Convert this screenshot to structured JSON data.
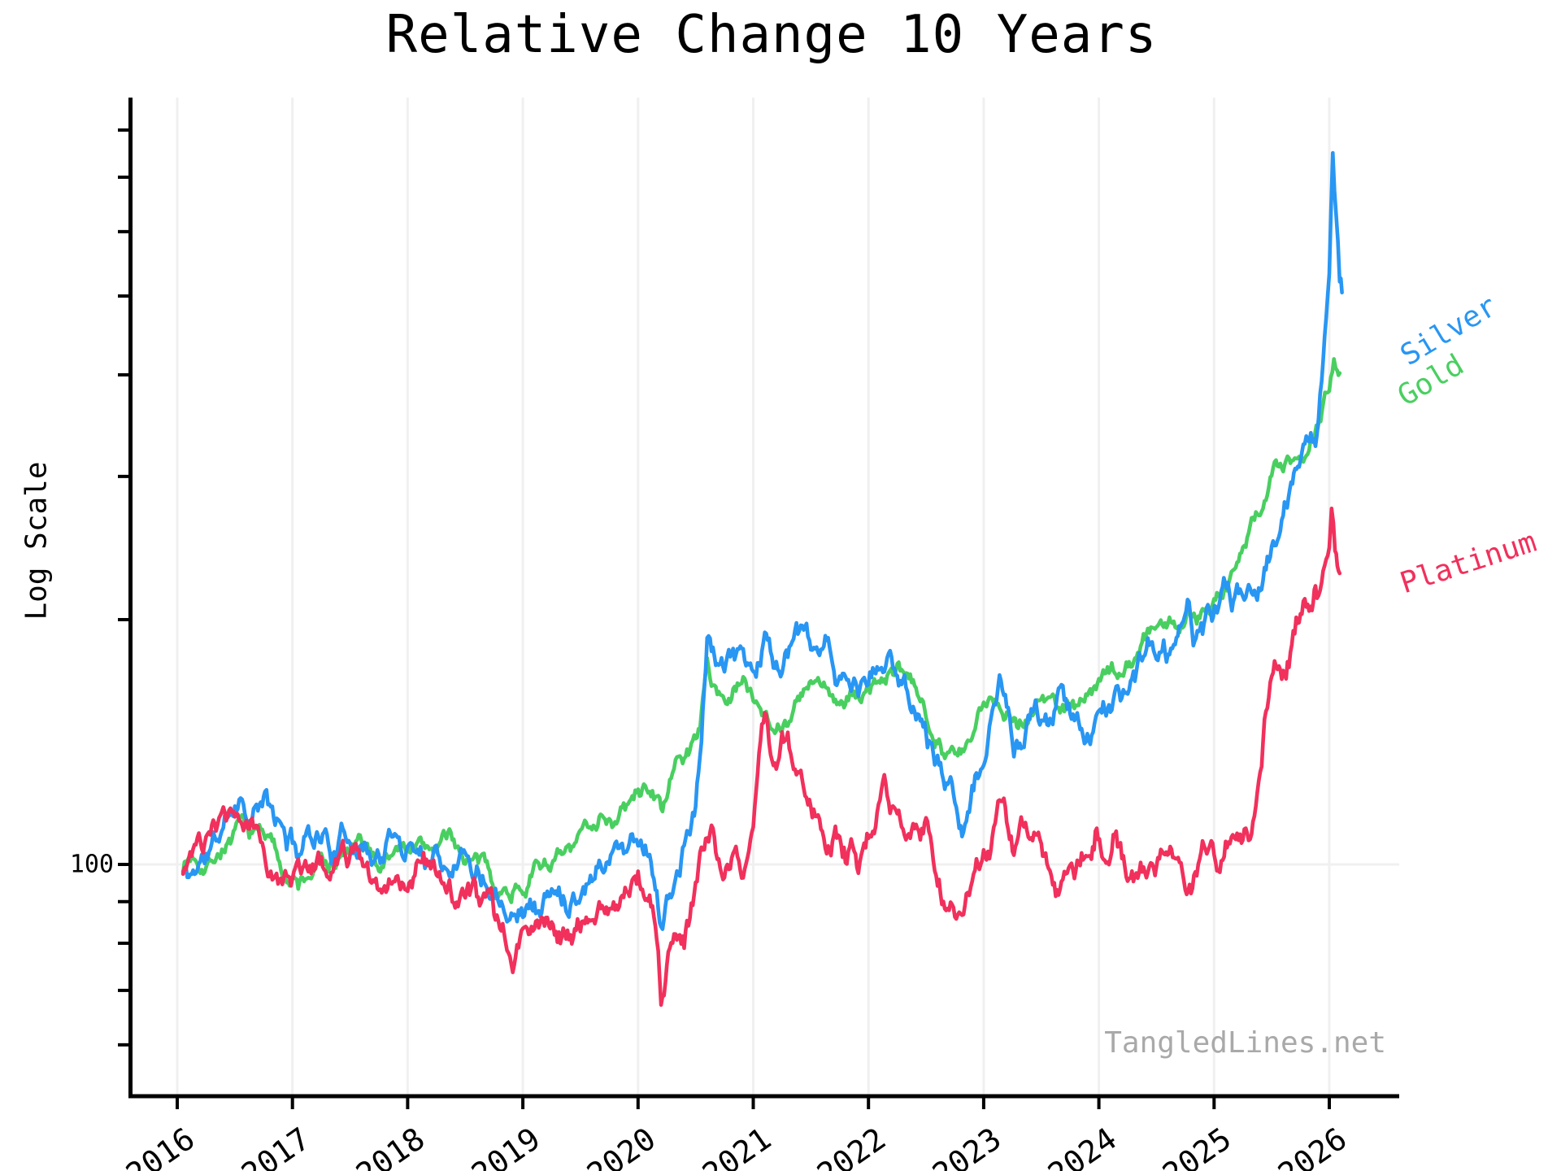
{
  "title": "Relative Change 10 Years",
  "watermark": "TangledLines.net",
  "y_axis": {
    "label": "Log Scale",
    "tick_label": "100"
  },
  "legend": [
    {
      "label": "Silver",
      "color": "#2896F3"
    },
    {
      "label": "Gold",
      "color": "#49CF60"
    },
    {
      "label": "Platinum",
      "color": "#F1305C"
    }
  ],
  "chart_data": {
    "type": "line",
    "title": "Relative Change 10 Years",
    "xlabel": "",
    "ylabel": "Log Scale",
    "yscale": "log",
    "ylim": [
      58,
      900
    ],
    "xlim": [
      2015.58,
      2026.6
    ],
    "x_ticks": [
      2016,
      2017,
      2018,
      2019,
      2020,
      2021,
      2022,
      2023,
      2024,
      2025,
      2026
    ],
    "y_tick_labeled": 100,
    "y_ticks_minor": [
      60,
      70,
      80,
      90,
      200,
      300,
      400,
      500,
      600,
      700,
      800
    ],
    "grid": {
      "vertical": "every year",
      "horizontal": "only at 100"
    },
    "legend_position": "right-of-line-ends",
    "series": [
      {
        "name": "Silver",
        "color": "#2896F3",
        "x": [
          2016.05,
          2016.1,
          2016.2,
          2016.3,
          2016.4,
          2016.5,
          2016.55,
          2016.65,
          2016.75,
          2016.85,
          2016.95,
          2017.05,
          2017.15,
          2017.25,
          2017.35,
          2017.45,
          2017.55,
          2017.65,
          2017.75,
          2017.85,
          2017.95,
          2018.05,
          2018.15,
          2018.25,
          2018.35,
          2018.45,
          2018.55,
          2018.65,
          2018.75,
          2018.85,
          2018.95,
          2019.05,
          2019.15,
          2019.25,
          2019.35,
          2019.45,
          2019.55,
          2019.65,
          2019.75,
          2019.85,
          2019.95,
          2020.05,
          2020.1,
          2020.15,
          2020.2,
          2020.25,
          2020.3,
          2020.35,
          2020.4,
          2020.45,
          2020.5,
          2020.55,
          2020.6,
          2020.65,
          2020.7,
          2020.75,
          2020.8,
          2020.85,
          2020.9,
          2020.95,
          2021.0,
          2021.1,
          2021.15,
          2021.2,
          2021.3,
          2021.4,
          2021.5,
          2021.55,
          2021.65,
          2021.75,
          2021.85,
          2021.95,
          2022.05,
          2022.15,
          2022.25,
          2022.35,
          2022.45,
          2022.55,
          2022.65,
          2022.75,
          2022.85,
          2022.95,
          2023.05,
          2023.15,
          2023.25,
          2023.35,
          2023.45,
          2023.55,
          2023.65,
          2023.75,
          2023.85,
          2023.95,
          2024.05,
          2024.15,
          2024.25,
          2024.35,
          2024.45,
          2024.55,
          2024.65,
          2024.72,
          2024.77,
          2024.82,
          2024.9,
          2024.97,
          2025.05,
          2025.12,
          2025.2,
          2025.3,
          2025.4,
          2025.5,
          2025.6,
          2025.68,
          2025.75,
          2025.8,
          2025.84,
          2025.88,
          2025.92,
          2025.96,
          2026.0,
          2026.03,
          2026.06,
          2026.09,
          2026.11
        ],
        "values": [
          98,
          96,
          101,
          104,
          110,
          121,
          123,
          117,
          120,
          112,
          107,
          104,
          110,
          112,
          105,
          107,
          110,
          106,
          104,
          107,
          105,
          108,
          104,
          106,
          104,
          107,
          103,
          100,
          97,
          94,
          92,
          91,
          90,
          92,
          91,
          94,
          98,
          102,
          105,
          107,
          108,
          109,
          106,
          98,
          85,
          89,
          94,
          99,
          104,
          108,
          116,
          140,
          193,
          180,
          176,
          170,
          175,
          172,
          180,
          176,
          174,
          191,
          182,
          176,
          183,
          188,
          181,
          172,
          176,
          168,
          161,
          164,
          170,
          177,
          171,
          164,
          152,
          143,
          128,
          120,
          117,
          128,
          145,
          164,
          140,
          132,
          152,
          148,
          157,
          149,
          146,
          149,
          152,
          158,
          165,
          172,
          180,
          184,
          176,
          196,
          223,
          196,
          189,
          204,
          210,
          216,
          209,
          222,
          232,
          244,
          262,
          292,
          318,
          342,
          352,
          330,
          398,
          455,
          560,
          776,
          640,
          520,
          505
        ]
      },
      {
        "name": "Gold",
        "color": "#49CF60",
        "x": [
          2016.05,
          2016.15,
          2016.25,
          2016.35,
          2016.45,
          2016.55,
          2016.65,
          2016.75,
          2016.85,
          2016.95,
          2017.05,
          2017.15,
          2017.25,
          2017.35,
          2017.45,
          2017.55,
          2017.65,
          2017.75,
          2017.85,
          2017.95,
          2018.05,
          2018.15,
          2018.25,
          2018.35,
          2018.45,
          2018.55,
          2018.65,
          2018.75,
          2018.85,
          2018.95,
          2019.05,
          2019.15,
          2019.25,
          2019.35,
          2019.45,
          2019.55,
          2019.65,
          2019.7,
          2019.8,
          2019.9,
          2020.0,
          2020.1,
          2020.15,
          2020.2,
          2020.3,
          2020.4,
          2020.5,
          2020.55,
          2020.6,
          2020.65,
          2020.7,
          2020.8,
          2020.9,
          2021.0,
          2021.1,
          2021.2,
          2021.3,
          2021.4,
          2021.5,
          2021.6,
          2021.7,
          2021.8,
          2021.9,
          2022.0,
          2022.1,
          2022.2,
          2022.3,
          2022.4,
          2022.5,
          2022.6,
          2022.7,
          2022.8,
          2022.9,
          2023.0,
          2023.1,
          2023.2,
          2023.3,
          2023.4,
          2023.5,
          2023.6,
          2023.7,
          2023.8,
          2023.9,
          2024.0,
          2024.1,
          2024.2,
          2024.3,
          2024.4,
          2024.5,
          2024.6,
          2024.7,
          2024.8,
          2024.9,
          2025.0,
          2025.1,
          2025.2,
          2025.3,
          2025.4,
          2025.45,
          2025.5,
          2025.55,
          2025.6,
          2025.65,
          2025.7,
          2025.75,
          2025.8,
          2025.85,
          2025.9,
          2025.95,
          2026.0,
          2026.04,
          2026.07,
          2026.09
        ],
        "values": [
          100,
          103,
          102,
          105,
          108,
          110,
          107,
          110,
          104,
          98,
          94,
          97,
          100,
          99,
          102,
          104,
          102,
          100,
          103,
          104,
          107,
          104,
          106,
          107,
          104,
          101,
          98,
          95,
          93,
          95,
          97,
          100,
          102,
          101,
          103,
          109,
          116,
          118,
          114,
          117,
          121,
          126,
          122,
          116,
          129,
          135,
          143,
          155,
          174,
          167,
          164,
          160,
          168,
          163,
          157,
          151,
          154,
          159,
          165,
          162,
          160,
          157,
          159,
          163,
          169,
          172,
          167,
          161,
          154,
          147,
          139,
          135,
          141,
          153,
          162,
          158,
          151,
          156,
          162,
          158,
          156,
          160,
          163,
          167,
          170,
          174,
          182,
          191,
          196,
          199,
          197,
          204,
          208,
          215,
          223,
          234,
          255,
          272,
          288,
          302,
          307,
          303,
          308,
          306,
          304,
          315,
          333,
          345,
          362,
          388,
          428,
          412,
          402
        ]
      },
      {
        "name": "Platinum",
        "color": "#F1305C",
        "x": [
          2016.05,
          2016.15,
          2016.25,
          2016.35,
          2016.45,
          2016.5,
          2016.6,
          2016.7,
          2016.8,
          2016.9,
          2017.0,
          2017.1,
          2017.2,
          2017.3,
          2017.4,
          2017.5,
          2017.6,
          2017.7,
          2017.8,
          2017.9,
          2018.0,
          2018.1,
          2018.2,
          2018.3,
          2018.4,
          2018.5,
          2018.6,
          2018.7,
          2018.8,
          2018.9,
          2019.0,
          2019.1,
          2019.2,
          2019.3,
          2019.4,
          2019.5,
          2019.6,
          2019.7,
          2019.8,
          2019.9,
          2020.0,
          2020.1,
          2020.15,
          2020.2,
          2020.25,
          2020.3,
          2020.35,
          2020.4,
          2020.5,
          2020.6,
          2020.65,
          2020.7,
          2020.75,
          2020.8,
          2020.85,
          2020.9,
          2020.95,
          2021.0,
          2021.05,
          2021.1,
          2021.15,
          2021.2,
          2021.25,
          2021.3,
          2021.35,
          2021.4,
          2021.45,
          2021.5,
          2021.55,
          2021.6,
          2021.65,
          2021.7,
          2021.75,
          2021.8,
          2021.85,
          2021.9,
          2022.0,
          2022.05,
          2022.1,
          2022.15,
          2022.2,
          2022.25,
          2022.3,
          2022.35,
          2022.4,
          2022.45,
          2022.5,
          2022.55,
          2022.6,
          2022.65,
          2022.7,
          2022.75,
          2022.85,
          2022.95,
          2023.05,
          2023.1,
          2023.15,
          2023.2,
          2023.25,
          2023.3,
          2023.35,
          2023.4,
          2023.5,
          2023.6,
          2023.65,
          2023.7,
          2023.8,
          2023.9,
          2023.97,
          2024.05,
          2024.1,
          2024.15,
          2024.2,
          2024.3,
          2024.35,
          2024.45,
          2024.55,
          2024.63,
          2024.7,
          2024.8,
          2024.9,
          2025.0,
          2025.05,
          2025.1,
          2025.15,
          2025.2,
          2025.3,
          2025.35,
          2025.4,
          2025.45,
          2025.5,
          2025.55,
          2025.6,
          2025.65,
          2025.7,
          2025.75,
          2025.8,
          2025.85,
          2025.88,
          2025.92,
          2025.96,
          2026.0,
          2026.02,
          2026.05,
          2026.07,
          2026.09
        ],
        "values": [
          100,
          104,
          103,
          108,
          114,
          116,
          111,
          108,
          103,
          100,
          97,
          99,
          101,
          98,
          97,
          100,
          101,
          97,
          96,
          98,
          100,
          103,
          100,
          96,
          93,
          91,
          88,
          86,
          82,
          80,
          79,
          82,
          86,
          84,
          83,
          86,
          88,
          87,
          91,
          94,
          97,
          95,
          89,
          68,
          76,
          80,
          83,
          82,
          89,
          106,
          110,
          104,
          98,
          101,
          106,
          100,
          107,
          116,
          130,
          143,
          134,
          130,
          138,
          134,
          128,
          131,
          124,
          121,
          117,
          113,
          110,
          112,
          107,
          104,
          108,
          102,
          109,
          114,
          119,
          124,
          116,
          110,
          105,
          102,
          107,
          104,
          108,
          101,
          96,
          92,
          90,
          89,
          94,
          101,
          107,
          112,
          119,
          110,
          103,
          107,
          112,
          108,
          104,
          99,
          96,
          98,
          101,
          106,
          113,
          107,
          103,
          112,
          104,
          97,
          95,
          100,
          106,
          111,
          104,
          99,
          104,
          101,
          97,
          103,
          106,
          102,
          108,
          116,
          126,
          148,
          166,
          178,
          172,
          183,
          193,
          204,
          210,
          202,
          208,
          212,
          235,
          262,
          295,
          258,
          235,
          228
        ]
      }
    ]
  }
}
